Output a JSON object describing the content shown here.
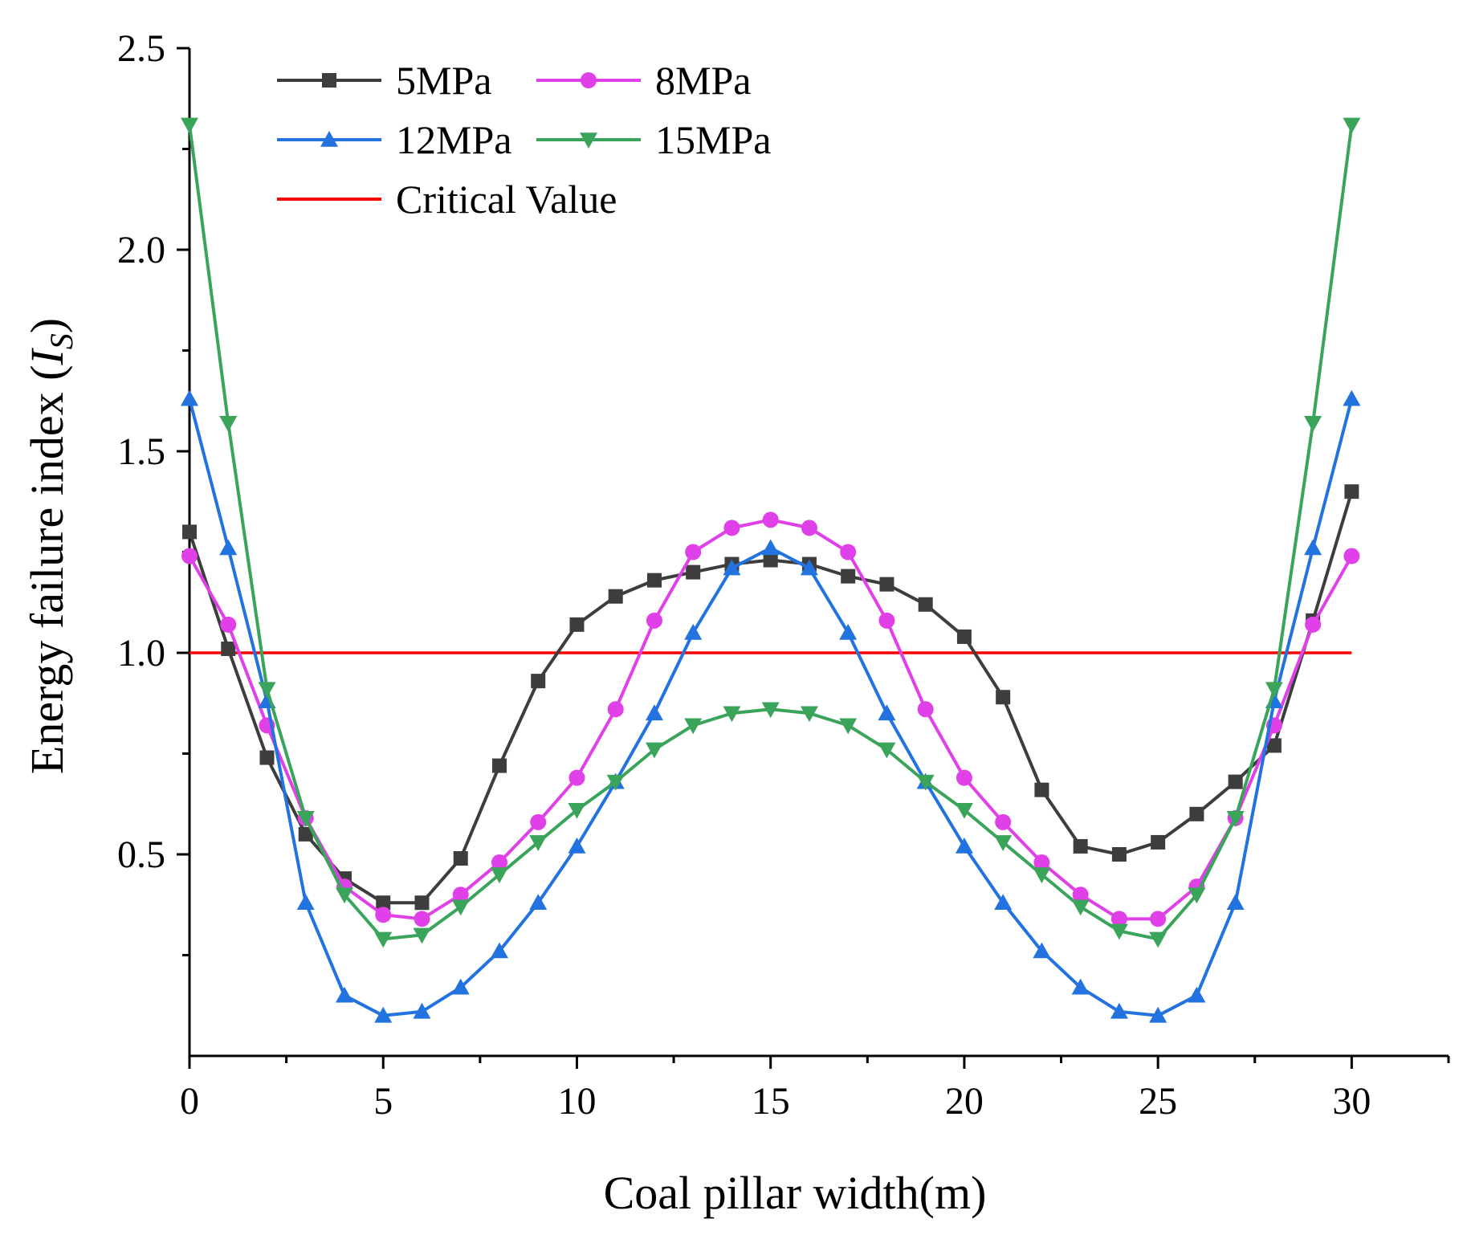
{
  "chart_data": {
    "type": "line",
    "title": "",
    "xlabel": "Coal pillar width(m)",
    "ylabel_main": "Energy failure index (",
    "ylabel_symbol": "I",
    "ylabel_subscript": "S",
    "ylabel_close": ")",
    "xlim": [
      0,
      32.5
    ],
    "ylim": [
      0,
      2.5
    ],
    "xticks": [
      0,
      5,
      10,
      15,
      20,
      25,
      30
    ],
    "yticks": [
      0.5,
      1.0,
      1.5,
      2.0,
      2.5
    ],
    "xtick_labels": [
      "0",
      "5",
      "10",
      "15",
      "20",
      "25",
      "30"
    ],
    "ytick_labels": [
      "0.5",
      "1.0",
      "1.5",
      "2.0",
      "2.5"
    ],
    "x": [
      0,
      1,
      2,
      3,
      4,
      5,
      6,
      7,
      8,
      9,
      10,
      11,
      12,
      13,
      14,
      15,
      16,
      17,
      18,
      19,
      20,
      21,
      22,
      23,
      24,
      25,
      26,
      27,
      28,
      29,
      30
    ],
    "series": [
      {
        "name": "5MPa",
        "color": "#3d3d3d",
        "marker": "square",
        "values": [
          1.3,
          1.01,
          0.74,
          0.55,
          0.44,
          0.38,
          0.38,
          0.49,
          0.72,
          0.93,
          1.07,
          1.14,
          1.18,
          1.2,
          1.22,
          1.23,
          1.22,
          1.19,
          1.17,
          1.12,
          1.04,
          0.89,
          0.66,
          0.52,
          0.5,
          0.53,
          0.6,
          0.68,
          0.77,
          1.08,
          1.4
        ]
      },
      {
        "name": "8MPa",
        "color": "#e040e8",
        "marker": "circle",
        "values": [
          1.24,
          1.07,
          0.82,
          0.59,
          0.42,
          0.35,
          0.34,
          0.4,
          0.48,
          0.58,
          0.69,
          0.86,
          1.08,
          1.25,
          1.31,
          1.33,
          1.31,
          1.25,
          1.08,
          0.86,
          0.69,
          0.58,
          0.48,
          0.4,
          0.34,
          0.34,
          0.42,
          0.59,
          0.82,
          1.07,
          1.24
        ]
      },
      {
        "name": "12MPa",
        "color": "#2272e0",
        "marker": "triangle-up",
        "values": [
          1.63,
          1.26,
          0.88,
          0.38,
          0.15,
          0.1,
          0.11,
          0.17,
          0.26,
          0.38,
          0.52,
          0.68,
          0.85,
          1.05,
          1.21,
          1.26,
          1.21,
          1.05,
          0.85,
          0.68,
          0.52,
          0.38,
          0.26,
          0.17,
          0.11,
          0.1,
          0.15,
          0.38,
          0.88,
          1.26,
          1.63
        ]
      },
      {
        "name": "15MPa",
        "color": "#3aa55a",
        "marker": "triangle-down",
        "values": [
          2.31,
          1.57,
          0.91,
          0.59,
          0.4,
          0.29,
          0.3,
          0.37,
          0.45,
          0.53,
          0.61,
          0.68,
          0.76,
          0.82,
          0.85,
          0.86,
          0.85,
          0.82,
          0.76,
          0.68,
          0.61,
          0.53,
          0.45,
          0.37,
          0.31,
          0.29,
          0.4,
          0.59,
          0.91,
          1.57,
          2.31
        ]
      }
    ],
    "reference_line": {
      "name": "Critical  Value",
      "color": "#ff0000",
      "y": 1.0,
      "x_range": [
        0,
        30
      ]
    },
    "legend_position": "top-left",
    "grid": false
  }
}
